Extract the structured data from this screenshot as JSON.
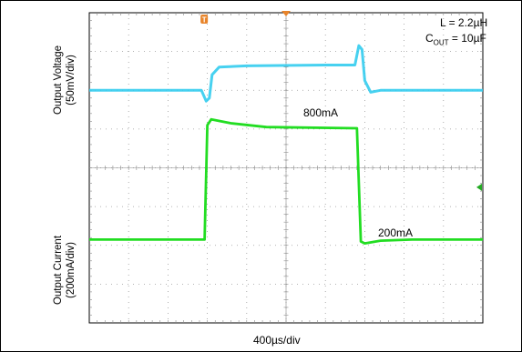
{
  "chart_data": {
    "type": "line",
    "title": "",
    "xlabel": "400µs/div",
    "y_axes": [
      {
        "label_line1": "Output Voltage",
        "label_line2": "(50mV/div)"
      },
      {
        "label_line1": "Output Current",
        "label_line2": "(200mA/div)"
      }
    ],
    "x_range_div": [
      0,
      10
    ],
    "grid": {
      "divisions_x": 10,
      "divisions_y": 8,
      "shown": true
    },
    "annotations": {
      "inductor": "L = 2.2µH",
      "cap_prefix": "C",
      "cap_sub": "OUT",
      "cap_value": " = 10µF",
      "high_label": "800mA",
      "low_label": "200mA",
      "trigger_marker": "T"
    },
    "series": [
      {
        "name": "",
        "unit_per_div": "50mV",
        "color": "#33ccee",
        "points_div": [
          [
            0,
            2.0
          ],
          [
            2.85,
            2.0
          ],
          [
            2.97,
            2.28
          ],
          [
            3.05,
            2.2
          ],
          [
            3.12,
            1.6
          ],
          [
            3.3,
            1.4
          ],
          [
            4.0,
            1.37
          ],
          [
            6.0,
            1.35
          ],
          [
            6.75,
            1.35
          ],
          [
            6.85,
            0.85
          ],
          [
            6.93,
            0.95
          ],
          [
            7.0,
            1.75
          ],
          [
            7.15,
            2.05
          ],
          [
            7.4,
            2.0
          ],
          [
            10,
            2.0
          ]
        ]
      },
      {
        "name": "",
        "unit_per_div": "200mA",
        "color": "#22dd22",
        "points_div": [
          [
            0,
            5.85
          ],
          [
            2.93,
            5.85
          ],
          [
            3.0,
            2.9
          ],
          [
            3.1,
            2.75
          ],
          [
            3.6,
            2.85
          ],
          [
            4.5,
            2.95
          ],
          [
            6.8,
            2.98
          ],
          [
            6.9,
            5.9
          ],
          [
            7.0,
            5.95
          ],
          [
            7.4,
            5.88
          ],
          [
            8.2,
            5.85
          ],
          [
            10,
            5.85
          ]
        ]
      }
    ]
  }
}
